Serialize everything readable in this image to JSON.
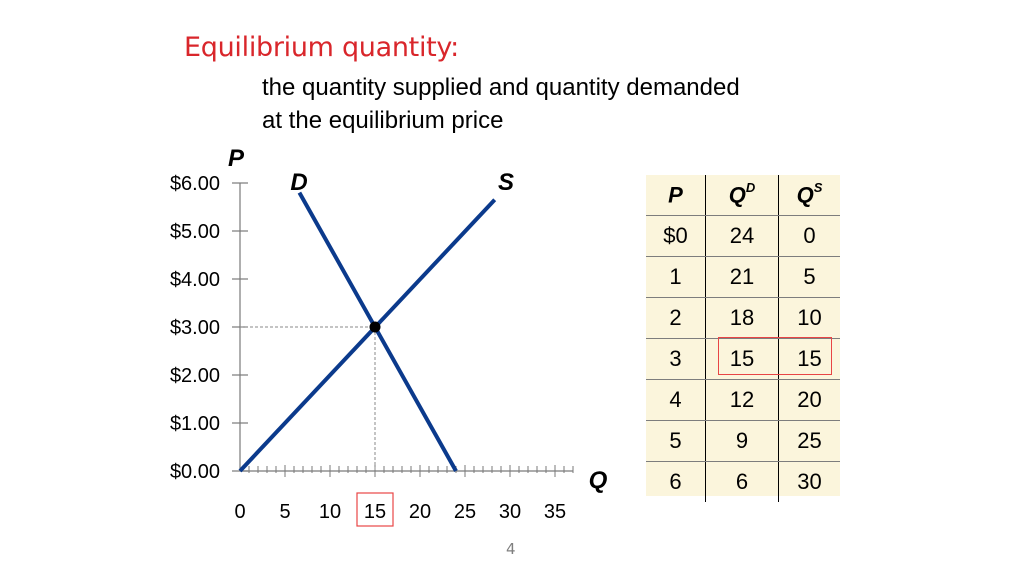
{
  "slide": {
    "title": "Equilibrium quantity:",
    "subtitle_line1": "the quantity supplied and quantity demanded",
    "subtitle_line2": "at the equilibrium price",
    "page_number": "4"
  },
  "colors": {
    "title": "#d9262b",
    "curves": "#0b3a8c",
    "highlight": "#e84545",
    "table_bg": "#fbf5dc"
  },
  "chart_data": {
    "type": "line",
    "xlabel": "Q",
    "ylabel": "P",
    "xlim": [
      0,
      37
    ],
    "ylim": [
      0,
      6
    ],
    "x_ticks": [
      "0",
      "5",
      "10",
      "15",
      "20",
      "25",
      "30",
      "35"
    ],
    "y_ticks": [
      "$0.00",
      "$1.00",
      "$2.00",
      "$3.00",
      "$4.00",
      "$5.00",
      "$6.00"
    ],
    "highlighted_x_tick": "15",
    "series": [
      {
        "name": "D",
        "points": [
          [
            6.6,
            5.8
          ],
          [
            24,
            0
          ]
        ]
      },
      {
        "name": "S",
        "points": [
          [
            0,
            0
          ],
          [
            28.3,
            5.65
          ]
        ]
      }
    ],
    "equilibrium": {
      "q": 15,
      "p": 3
    },
    "grid": false
  },
  "table": {
    "headers": [
      {
        "main": "P",
        "sup": ""
      },
      {
        "main": "Q",
        "sup": "D"
      },
      {
        "main": "Q",
        "sup": "S"
      }
    ],
    "rows": [
      [
        "$0",
        "24",
        "0"
      ],
      [
        "1",
        "21",
        "5"
      ],
      [
        "2",
        "18",
        "10"
      ],
      [
        "3",
        "15",
        "15"
      ],
      [
        "4",
        "12",
        "20"
      ],
      [
        "5",
        "9",
        "25"
      ],
      [
        "6",
        "6",
        "30"
      ]
    ],
    "highlighted_row": 3
  }
}
